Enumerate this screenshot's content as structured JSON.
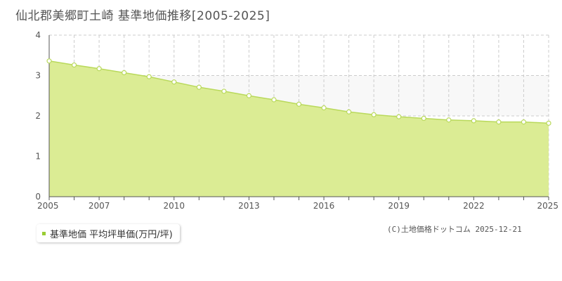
{
  "title": "仙北郡美郷町土崎 基準地価推移[2005-2025]",
  "legend": {
    "label": "基準地価 平均坪単価(万円/坪)"
  },
  "copyright": "(C)土地価格ドットコム 2025-12-21",
  "colors": {
    "area_fill": "#dbec94",
    "line": "#b9d95b",
    "band_fill": "#f8f8f8",
    "grid": "#cccccc",
    "marker": "#ffffff"
  },
  "chart_data": {
    "type": "area",
    "x": [
      2005,
      2006,
      2007,
      2008,
      2009,
      2010,
      2011,
      2012,
      2013,
      2014,
      2015,
      2016,
      2017,
      2018,
      2019,
      2020,
      2021,
      2022,
      2023,
      2024,
      2025
    ],
    "series": [
      {
        "name": "基準地価 平均坪単価(万円/坪)",
        "values": [
          3.36,
          3.26,
          3.17,
          3.07,
          2.97,
          2.84,
          2.71,
          2.61,
          2.5,
          2.4,
          2.29,
          2.2,
          2.1,
          2.03,
          1.98,
          1.94,
          1.9,
          1.88,
          1.85,
          1.85,
          1.82
        ]
      }
    ],
    "xlim": [
      2005,
      2025
    ],
    "ylim": [
      0,
      4
    ],
    "x_tick_labels": [
      "2005",
      "2007",
      "2010",
      "2013",
      "2016",
      "2019",
      "2022",
      "2025"
    ],
    "y_tick_labels": [
      "0",
      "1",
      "2",
      "3",
      "4"
    ],
    "grid": true
  }
}
